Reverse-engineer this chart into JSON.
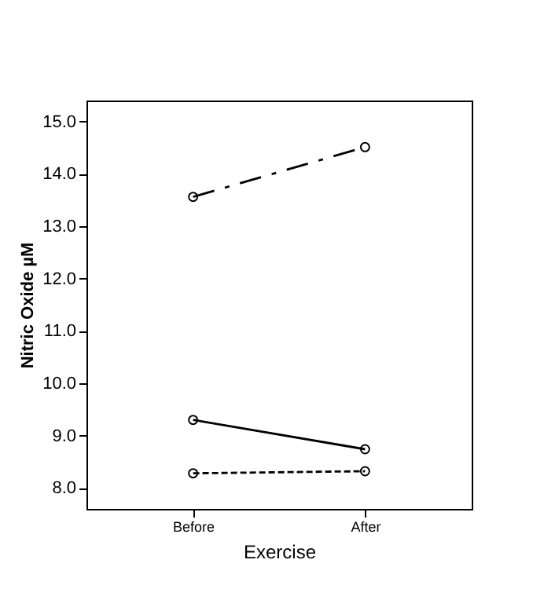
{
  "chart_data": {
    "type": "line",
    "xlabel": "Exercise",
    "ylabel": "Nitric Oxide µM",
    "categories": [
      "Before",
      "After"
    ],
    "series": [
      {
        "color": "#000000",
        "values": [
          13.56,
          14.51
        ],
        "line_style": "dashed"
      },
      {
        "color": "#000000",
        "values": [
          9.3,
          8.74
        ],
        "line_style": "solid"
      },
      {
        "color": "#000000",
        "values": [
          8.28,
          8.32
        ],
        "line_style": "dotted"
      }
    ],
    "ylim": [
      7.6,
      15.4
    ],
    "yticks": [
      {
        "value": 8,
        "label": "8.0"
      },
      {
        "value": 9,
        "label": "9.0"
      },
      {
        "value": 10,
        "label": "10.0"
      },
      {
        "value": 11,
        "label": "11.0"
      },
      {
        "value": 12,
        "label": "12.0"
      },
      {
        "value": 13,
        "label": "13.0"
      },
      {
        "value": 14,
        "label": "14.0"
      },
      {
        "value": 15,
        "label": "15.0"
      }
    ],
    "marker": "circle",
    "grid": false
  }
}
